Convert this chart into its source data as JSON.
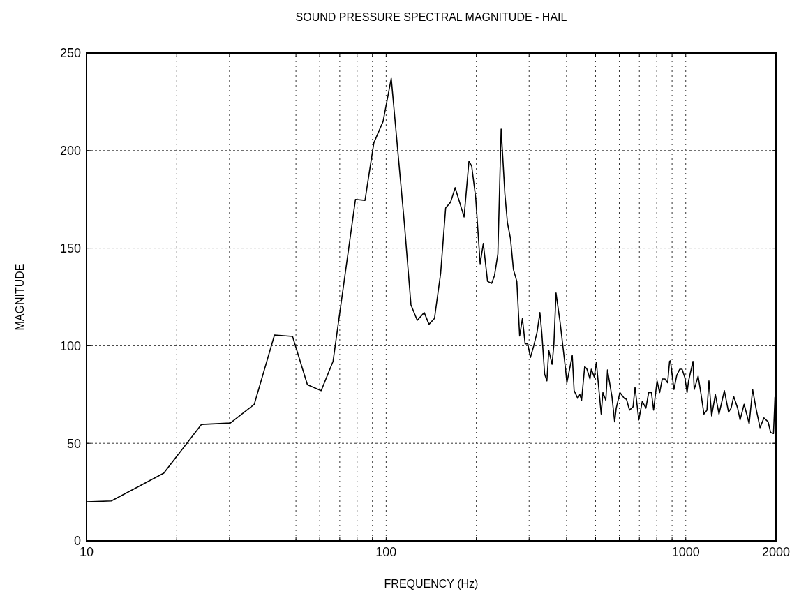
{
  "chart_data": {
    "type": "line",
    "title": "SOUND PRESSURE SPECTRAL MAGNITUDE - HAIL",
    "xlabel": "FREQUENCY (Hz)",
    "ylabel": "MAGNITUDE",
    "log": "x",
    "grid": true,
    "marker": "none",
    "line_style": "solid",
    "xlim": [
      10,
      2000
    ],
    "ylim": [
      0,
      250
    ],
    "xticks": [
      10,
      {
        "value": 20,
        "label": null
      },
      {
        "value": 30,
        "label": null
      },
      {
        "value": 40,
        "label": null
      },
      {
        "value": 50,
        "label": null
      },
      {
        "value": 60,
        "label": null
      },
      {
        "value": 70,
        "label": null
      },
      {
        "value": 80,
        "label": null
      },
      {
        "value": 90,
        "label": null
      },
      100,
      {
        "value": 200,
        "label": null
      },
      {
        "value": 300,
        "label": null
      },
      {
        "value": 400,
        "label": null
      },
      {
        "value": 500,
        "label": null
      },
      {
        "value": 600,
        "label": null
      },
      {
        "value": 700,
        "label": null
      },
      {
        "value": 800,
        "label": null
      },
      {
        "value": 900,
        "label": null
      },
      1000,
      2000
    ],
    "yticks": [
      0,
      50,
      100,
      150,
      200,
      250
    ],
    "series": [
      {
        "color": "#000000",
        "x": [
          10,
          12.1,
          18.1,
          24.2,
          30.2,
          36.3,
          42.4,
          48.7,
          54.6,
          60.7,
          66.5,
          79,
          85,
          91,
          97.7,
          104,
          115,
          121,
          127,
          134,
          139,
          145,
          152,
          158,
          164,
          170,
          182,
          189,
          193,
          199,
          206,
          211,
          218,
          225,
          230,
          236,
          242,
          249,
          254,
          260,
          266,
          273,
          279,
          285,
          291,
          297,
          303,
          311,
          319,
          326,
          331,
          338,
          344,
          349,
          358,
          363,
          369,
          381,
          397,
          401,
          409,
          418,
          424,
          436,
          443,
          449,
          460,
          468,
          479,
          484,
          495,
          503,
          522,
          529,
          541,
          548,
          567,
          579,
          586,
          603,
          624,
          634,
          649,
          667,
          677,
          697,
          716,
          736,
          752,
          768,
          781,
          802,
          818,
          835,
          852,
          870,
          883,
          889,
          913,
          933,
          955,
          972,
          993,
          1010,
          1022,
          1057,
          1067,
          1100,
          1125,
          1150,
          1177,
          1195,
          1220,
          1255,
          1291,
          1318,
          1345,
          1389,
          1417,
          1445,
          1490,
          1518,
          1566,
          1628,
          1672,
          1715,
          1770,
          1823,
          1883,
          1920,
          1962,
          1985,
          2000
        ],
        "values": [
          20,
          20.5,
          34.7,
          59.7,
          60.4,
          70,
          105.5,
          104.8,
          80,
          77,
          92,
          175,
          174.5,
          204,
          215,
          237,
          163,
          121,
          113,
          117,
          111,
          114,
          137,
          170.6,
          173.5,
          181,
          166,
          194.6,
          192,
          176,
          142,
          152.4,
          133,
          132,
          136,
          147,
          211,
          178,
          163,
          155,
          139,
          133,
          105,
          114,
          101,
          101,
          94,
          100,
          107,
          117,
          106,
          85.5,
          82,
          97.6,
          90.5,
          101,
          127,
          111.6,
          88,
          81,
          87.6,
          95,
          77,
          73,
          75,
          72,
          89.4,
          88,
          83,
          88,
          84,
          91.5,
          65,
          76,
          72,
          87.6,
          74,
          61,
          68,
          76,
          73,
          72.6,
          67,
          68.7,
          78.7,
          62,
          71.5,
          68,
          76,
          76,
          67,
          82,
          76,
          83,
          83,
          81,
          92,
          92.3,
          77.6,
          84.8,
          88,
          88,
          83.7,
          76,
          82,
          92,
          77.6,
          84.4,
          75,
          65,
          67,
          82,
          64,
          75,
          65,
          71,
          77,
          66,
          68,
          74,
          68,
          62,
          70,
          60,
          77.6,
          68,
          58,
          63,
          61,
          55.5,
          55,
          73.7,
          62
        ]
      }
    ]
  }
}
